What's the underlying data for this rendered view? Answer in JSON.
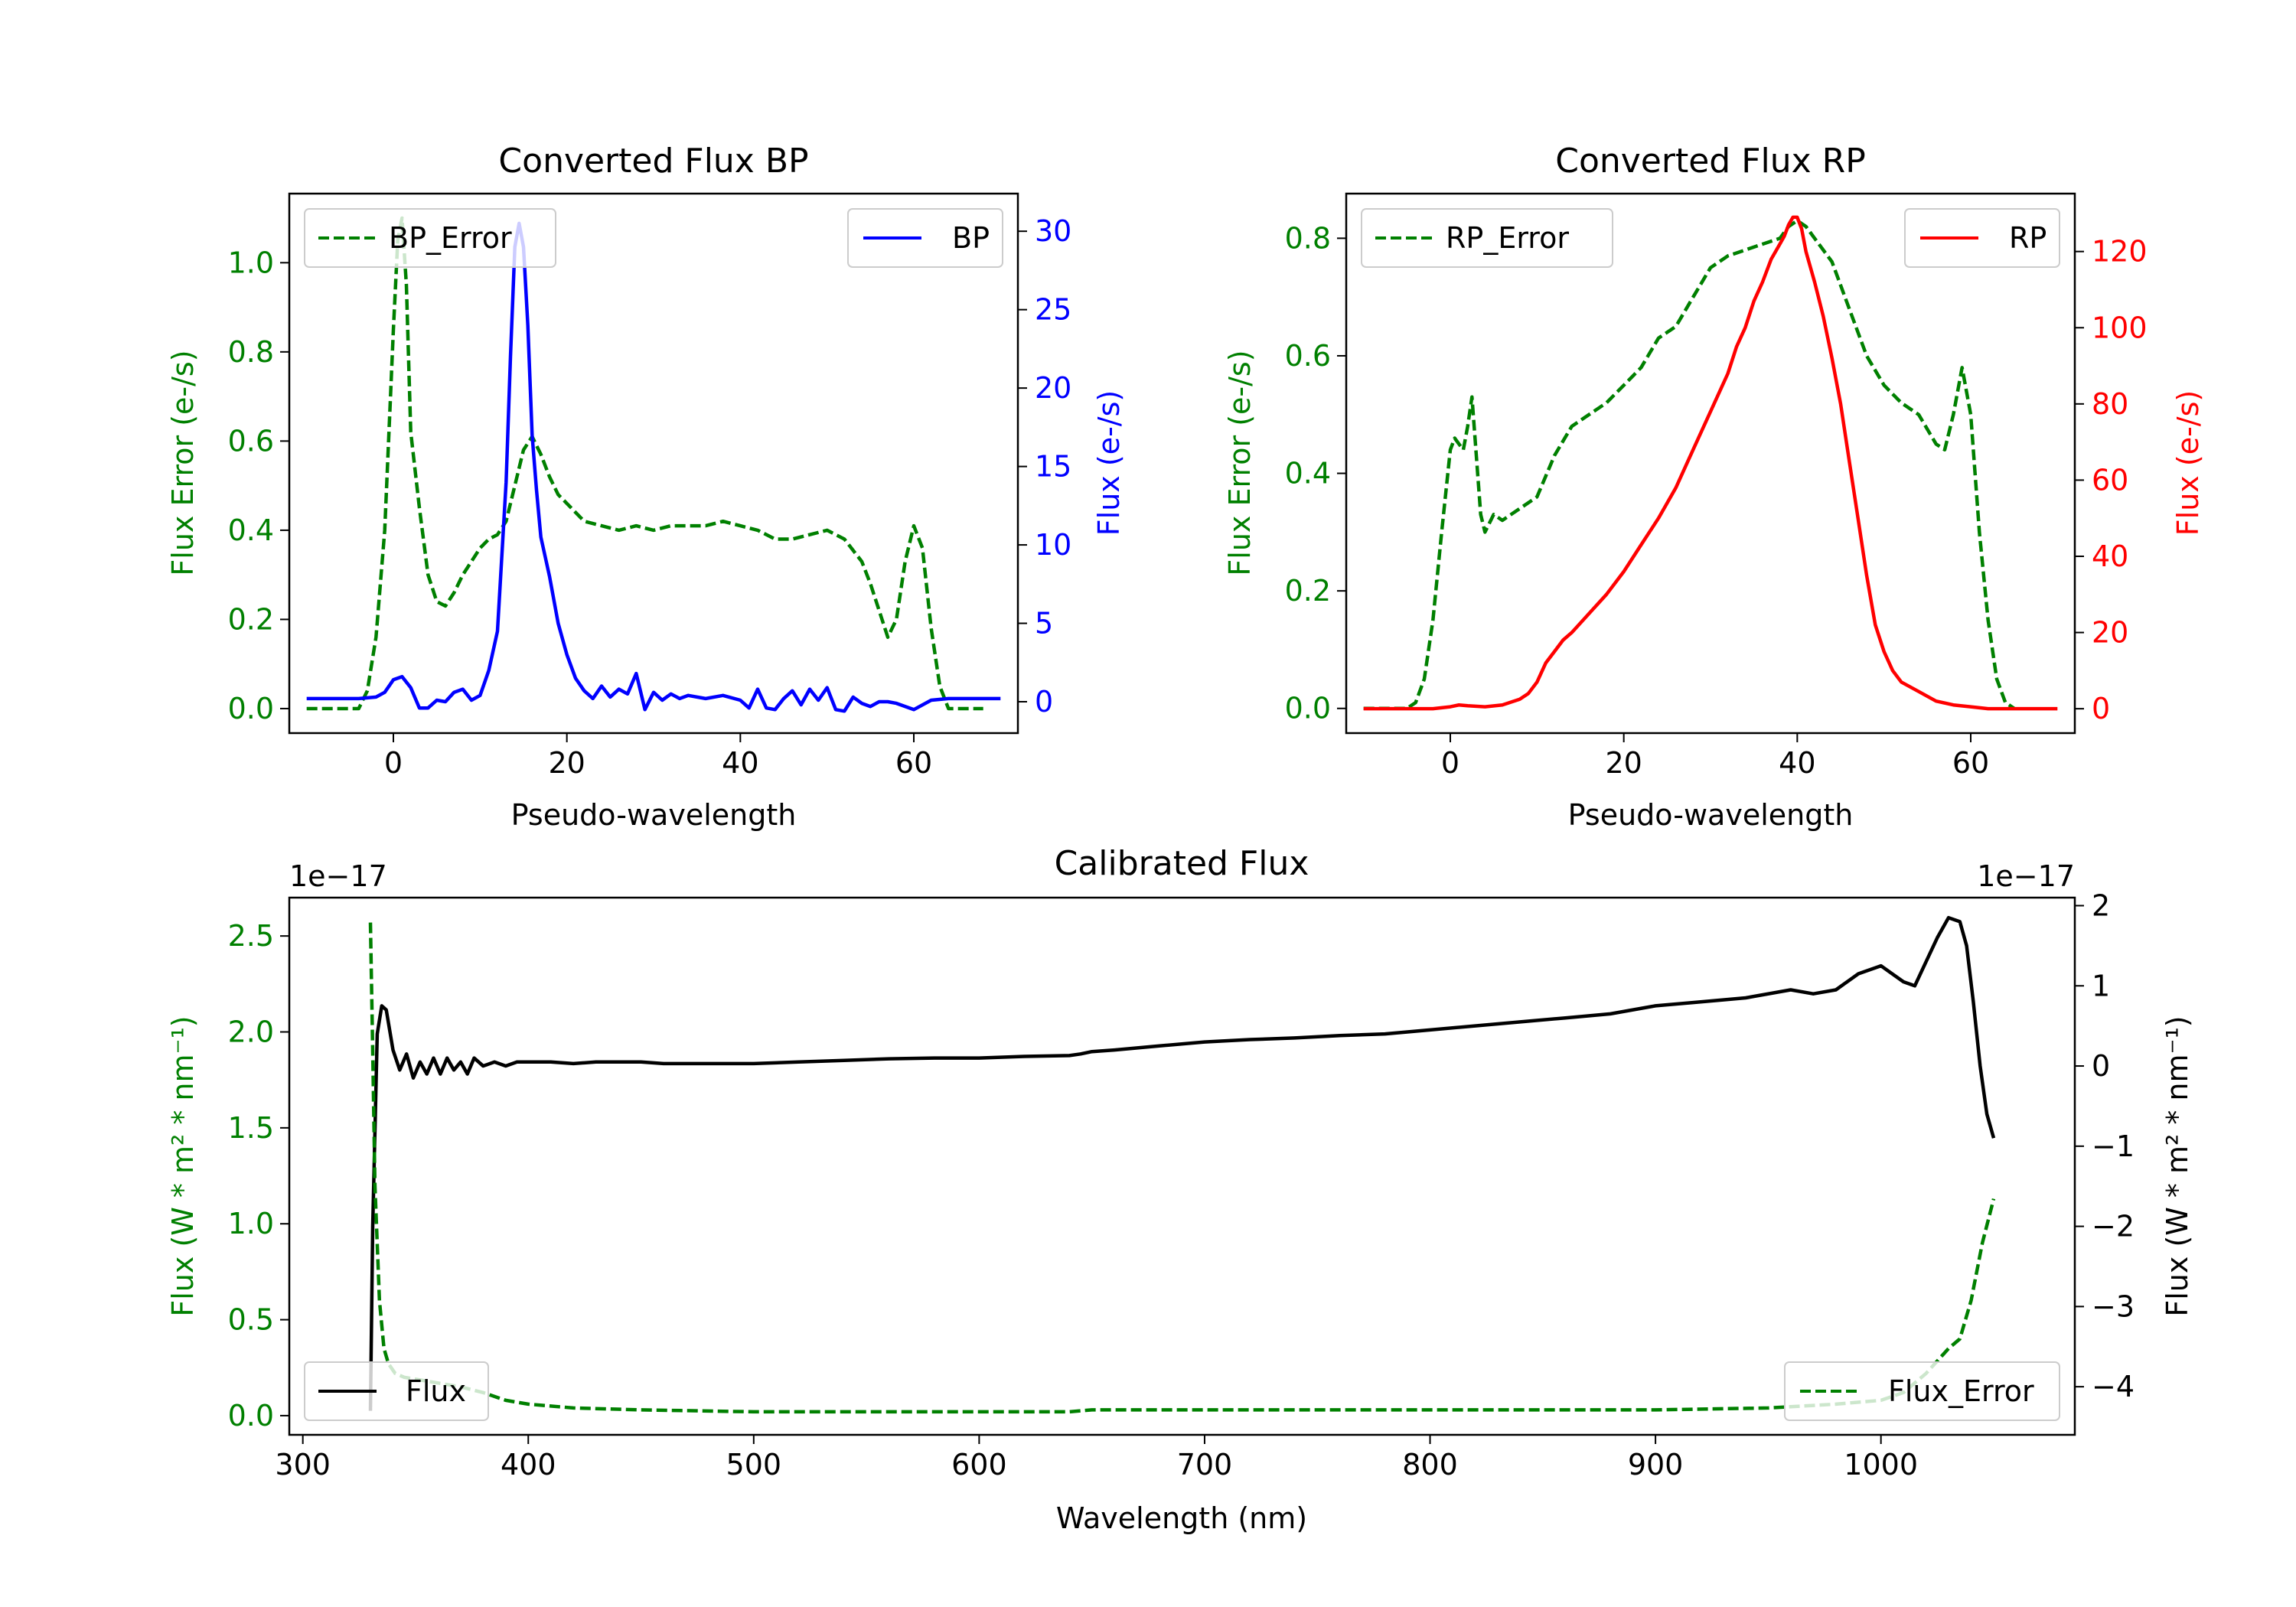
{
  "chart_data": [
    {
      "id": "bp",
      "type": "line",
      "title": "Converted Flux BP",
      "xlabel": "Pseudo-wavelength",
      "xlim": [
        -12,
        72
      ],
      "xticks": [
        0,
        20,
        40,
        60
      ],
      "left_axis": {
        "label": "Flux Error (e-/s)",
        "color": "#008000",
        "ylim": [
          -0.055,
          1.155
        ],
        "ticks": [
          0.0,
          0.2,
          0.4,
          0.6,
          0.8,
          1.0
        ],
        "tick_labels": [
          "0.0",
          "0.2",
          "0.4",
          "0.6",
          "0.8",
          "1.0"
        ]
      },
      "right_axis": {
        "label": "Flux (e-/s)",
        "color": "#0000ff",
        "ylim": [
          -2.0,
          32.4
        ],
        "ticks": [
          0,
          5,
          10,
          15,
          20,
          25,
          30
        ],
        "tick_labels": [
          "0",
          "5",
          "10",
          "15",
          "20",
          "25",
          "30"
        ]
      },
      "series": [
        {
          "name": "BP_Error",
          "axis": "left",
          "color": "#008000",
          "style": "dashed",
          "legend": "upper left",
          "x": [
            -10,
            -6,
            -4,
            -3,
            -2,
            -1,
            0,
            0.5,
            1,
            1.5,
            2,
            3,
            4,
            5,
            6,
            7,
            8,
            9,
            10,
            11,
            12,
            13,
            14,
            15,
            16,
            17,
            18,
            19,
            20,
            22,
            24,
            26,
            28,
            30,
            32,
            34,
            36,
            38,
            40,
            42,
            44,
            46,
            48,
            50,
            52,
            54,
            55,
            56,
            57,
            58,
            59,
            60,
            61,
            62,
            63,
            64,
            66,
            68
          ],
          "y": [
            0.0,
            0.0,
            0.0,
            0.04,
            0.16,
            0.4,
            0.85,
            1.05,
            1.1,
            0.95,
            0.62,
            0.45,
            0.3,
            0.24,
            0.23,
            0.26,
            0.3,
            0.33,
            0.36,
            0.38,
            0.39,
            0.42,
            0.5,
            0.58,
            0.61,
            0.57,
            0.52,
            0.48,
            0.46,
            0.42,
            0.41,
            0.4,
            0.41,
            0.4,
            0.41,
            0.41,
            0.41,
            0.42,
            0.41,
            0.4,
            0.38,
            0.38,
            0.39,
            0.4,
            0.38,
            0.33,
            0.28,
            0.22,
            0.16,
            0.2,
            0.33,
            0.41,
            0.36,
            0.18,
            0.05,
            0.0,
            0.0,
            0.0
          ]
        },
        {
          "name": "BP",
          "axis": "right",
          "color": "#0000ff",
          "style": "solid",
          "legend": "upper right",
          "x": [
            -10,
            -4,
            -2,
            -1,
            0,
            1,
            2,
            3,
            4,
            5,
            6,
            7,
            8,
            9,
            10,
            11,
            12,
            13,
            13.5,
            14,
            14.5,
            15,
            15.5,
            16,
            16.5,
            17,
            18,
            19,
            20,
            21,
            22,
            23,
            24,
            25,
            26,
            27,
            28,
            29,
            30,
            31,
            32,
            33,
            34,
            36,
            38,
            40,
            41,
            42,
            43,
            44,
            45,
            46,
            47,
            48,
            49,
            50,
            51,
            52,
            53,
            54,
            55,
            56,
            57,
            58,
            60,
            62,
            64,
            66,
            68,
            70
          ],
          "y": [
            0.2,
            0.2,
            0.3,
            0.6,
            1.4,
            1.6,
            0.9,
            -0.4,
            -0.4,
            0.1,
            0.0,
            0.6,
            0.8,
            0.1,
            0.4,
            2.0,
            4.5,
            14.0,
            22.0,
            29.0,
            30.5,
            29.0,
            24.0,
            17.0,
            13.5,
            10.5,
            8.0,
            5.0,
            3.0,
            1.5,
            0.7,
            0.2,
            1.0,
            0.3,
            0.8,
            0.5,
            1.8,
            -0.5,
            0.6,
            0.1,
            0.5,
            0.2,
            0.4,
            0.2,
            0.4,
            0.1,
            -0.4,
            0.8,
            -0.4,
            -0.5,
            0.2,
            0.7,
            -0.2,
            0.8,
            0.1,
            0.9,
            -0.5,
            -0.6,
            0.3,
            -0.1,
            -0.3,
            0.0,
            0.0,
            -0.1,
            -0.5,
            0.1,
            0.2,
            0.2,
            0.2,
            0.2
          ]
        }
      ]
    },
    {
      "id": "rp",
      "type": "line",
      "title": "Converted Flux RP",
      "xlabel": "Pseudo-wavelength",
      "xlim": [
        -12,
        72
      ],
      "xticks": [
        0,
        20,
        40,
        60
      ],
      "left_axis": {
        "label": "Flux Error (e-/s)",
        "color": "#008000",
        "ylim": [
          -0.042,
          0.876
        ],
        "ticks": [
          0.0,
          0.2,
          0.4,
          0.6,
          0.8
        ],
        "tick_labels": [
          "0.0",
          "0.2",
          "0.4",
          "0.6",
          "0.8"
        ]
      },
      "right_axis": {
        "label": "Flux (e-/s)",
        "color": "#ff0000",
        "ylim": [
          -6.4,
          135.2
        ],
        "ticks": [
          0,
          20,
          40,
          60,
          80,
          100,
          120
        ],
        "tick_labels": [
          "0",
          "20",
          "40",
          "60",
          "80",
          "100",
          "120"
        ]
      },
      "series": [
        {
          "name": "RP_Error",
          "axis": "left",
          "color": "#008000",
          "style": "dashed",
          "legend": "upper left",
          "x": [
            -10,
            -5,
            -4,
            -3,
            -2,
            -1,
            0,
            0.5,
            1,
            1.5,
            2,
            2.5,
            3,
            3.5,
            4,
            5,
            6,
            8,
            10,
            12,
            14,
            16,
            18,
            20,
            22,
            24,
            26,
            28,
            30,
            32,
            34,
            36,
            38,
            39,
            40,
            41,
            42,
            44,
            46,
            48,
            50,
            52,
            54,
            56,
            57,
            58,
            59,
            60,
            61,
            62,
            63,
            64,
            65
          ],
          "y": [
            0.0,
            0.0,
            0.01,
            0.05,
            0.15,
            0.3,
            0.44,
            0.46,
            0.45,
            0.44,
            0.48,
            0.53,
            0.43,
            0.33,
            0.3,
            0.33,
            0.32,
            0.34,
            0.36,
            0.43,
            0.48,
            0.5,
            0.52,
            0.55,
            0.58,
            0.63,
            0.65,
            0.7,
            0.75,
            0.77,
            0.78,
            0.79,
            0.8,
            0.82,
            0.83,
            0.82,
            0.8,
            0.76,
            0.68,
            0.6,
            0.55,
            0.52,
            0.5,
            0.45,
            0.44,
            0.5,
            0.58,
            0.5,
            0.3,
            0.15,
            0.05,
            0.01,
            0.0
          ]
        },
        {
          "name": "RP",
          "axis": "right",
          "color": "#ff0000",
          "style": "solid",
          "legend": "upper right",
          "x": [
            -10,
            -2,
            0,
            1,
            2,
            4,
            6,
            8,
            9,
            10,
            11,
            12,
            13,
            14,
            16,
            18,
            20,
            22,
            24,
            26,
            28,
            30,
            32,
            33,
            34,
            35,
            36,
            37,
            38,
            38.5,
            39,
            39.5,
            40,
            40.5,
            41,
            42,
            43,
            44,
            45,
            46,
            47,
            48,
            49,
            50,
            51,
            52,
            54,
            56,
            58,
            60,
            62,
            64,
            66,
            68,
            70
          ],
          "y": [
            0.0,
            0.0,
            0.5,
            1.0,
            0.8,
            0.5,
            1.0,
            2.5,
            4.0,
            7.0,
            12.0,
            15.0,
            18.0,
            20.0,
            25.0,
            30.0,
            36.0,
            43.0,
            50.0,
            58.0,
            68.0,
            78.0,
            88.0,
            95.0,
            100.0,
            107.0,
            112.0,
            118.0,
            122.0,
            124.0,
            127.0,
            129.0,
            129.0,
            126.0,
            120.0,
            112.0,
            103.0,
            92.0,
            80.0,
            65.0,
            50.0,
            35.0,
            22.0,
            15.0,
            10.0,
            7.0,
            4.5,
            2.0,
            1.0,
            0.5,
            0.0,
            0.0,
            0.0,
            0.0,
            0.0
          ]
        }
      ]
    },
    {
      "id": "cal",
      "type": "line",
      "title": "Calibrated Flux",
      "xlabel": "Wavelength (nm)",
      "xlim": [
        294,
        1086
      ],
      "xticks": [
        300,
        400,
        500,
        600,
        700,
        800,
        900,
        1000
      ],
      "left_axis": {
        "label": "Flux (W * m² * nm⁻¹)",
        "color": "#008000",
        "offset_text": "1e−17",
        "ylim": [
          -0.1,
          2.7
        ],
        "ticks": [
          0.0,
          0.5,
          1.0,
          1.5,
          2.0,
          2.5
        ],
        "tick_labels": [
          "0.0",
          "0.5",
          "1.0",
          "1.5",
          "2.0",
          "2.5"
        ]
      },
      "right_axis": {
        "label": "Flux (W * m² * nm⁻¹)",
        "color": "#000000",
        "offset_text": "1e−17",
        "ylim": [
          -4.6,
          2.1
        ],
        "ticks": [
          -4,
          -3,
          -2,
          -1,
          0,
          1,
          2
        ],
        "tick_labels": [
          "−4",
          "−3",
          "−2",
          "−1",
          "0",
          "1",
          "2"
        ]
      },
      "series": [
        {
          "name": "Flux",
          "axis": "right",
          "color": "#000000",
          "style": "solid",
          "legend": "lower left",
          "x": [
            330,
            331,
            333,
            335,
            337,
            340,
            343,
            346,
            349,
            352,
            355,
            358,
            361,
            364,
            367,
            370,
            373,
            376,
            380,
            385,
            390,
            395,
            400,
            410,
            420,
            430,
            440,
            450,
            460,
            480,
            500,
            520,
            540,
            560,
            580,
            600,
            620,
            640,
            645,
            650,
            660,
            680,
            700,
            720,
            740,
            760,
            780,
            800,
            820,
            840,
            860,
            880,
            900,
            920,
            940,
            960,
            970,
            980,
            990,
            1000,
            1010,
            1015,
            1020,
            1025,
            1030,
            1035,
            1038,
            1041,
            1044,
            1047,
            1050
          ],
          "y": [
            -4.3,
            -2.0,
            0.4,
            0.75,
            0.7,
            0.2,
            -0.05,
            0.15,
            -0.15,
            0.05,
            -0.1,
            0.1,
            -0.1,
            0.1,
            -0.05,
            0.05,
            -0.1,
            0.1,
            0.0,
            0.05,
            0.0,
            0.05,
            0.05,
            0.05,
            0.03,
            0.05,
            0.05,
            0.05,
            0.03,
            0.03,
            0.03,
            0.05,
            0.07,
            0.09,
            0.1,
            0.1,
            0.12,
            0.13,
            0.15,
            0.18,
            0.2,
            0.25,
            0.3,
            0.33,
            0.35,
            0.38,
            0.4,
            0.45,
            0.5,
            0.55,
            0.6,
            0.65,
            0.75,
            0.8,
            0.85,
            0.95,
            0.9,
            0.95,
            1.15,
            1.25,
            1.05,
            1.0,
            1.3,
            1.6,
            1.85,
            1.8,
            1.5,
            0.8,
            0.0,
            -0.6,
            -0.9
          ]
        },
        {
          "name": "Flux_Error",
          "axis": "left",
          "color": "#008000",
          "style": "dashed",
          "legend": "lower right",
          "x": [
            330,
            331,
            332,
            334,
            336,
            338,
            341,
            345,
            350,
            360,
            370,
            380,
            390,
            400,
            420,
            450,
            500,
            550,
            600,
            640,
            650,
            700,
            800,
            900,
            950,
            980,
            1000,
            1010,
            1020,
            1030,
            1035,
            1040,
            1045,
            1050
          ],
          "y": [
            2.57,
            1.9,
            1.2,
            0.6,
            0.35,
            0.27,
            0.22,
            0.2,
            0.19,
            0.17,
            0.15,
            0.12,
            0.08,
            0.06,
            0.04,
            0.03,
            0.02,
            0.02,
            0.02,
            0.02,
            0.03,
            0.03,
            0.03,
            0.03,
            0.04,
            0.06,
            0.08,
            0.12,
            0.22,
            0.35,
            0.4,
            0.6,
            0.9,
            1.13
          ]
        }
      ]
    }
  ]
}
